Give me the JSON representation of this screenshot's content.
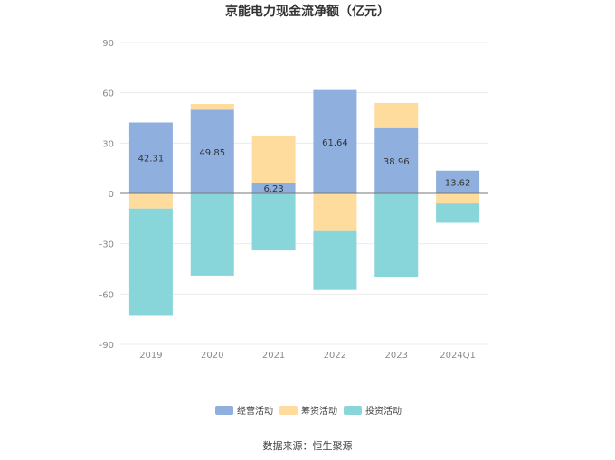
{
  "chart_data": {
    "type": "bar",
    "stacked": true,
    "title": "京能电力现金流净额（亿元）",
    "categories": [
      "2019",
      "2020",
      "2021",
      "2022",
      "2023",
      "2024Q1"
    ],
    "ylim": [
      -90,
      90
    ],
    "yticks": [
      90,
      60,
      30,
      0,
      -30,
      -60,
      -90
    ],
    "grid": true,
    "legend_position": "bottom",
    "series": [
      {
        "name": "经营活动",
        "color": "#8fb0de",
        "values": [
          42.31,
          49.85,
          6.23,
          61.64,
          38.96,
          13.62
        ],
        "labels": [
          "42.31",
          "49.85",
          "6.23",
          "61.64",
          "38.96",
          "13.62"
        ]
      },
      {
        "name": "筹资活动",
        "color": "#fddc9e",
        "values": [
          -9.0,
          3.5,
          28.0,
          -22.5,
          15.0,
          -6.0
        ]
      },
      {
        "name": "投资活动",
        "color": "#88d6da",
        "values": [
          -64.0,
          -49.0,
          -34.0,
          -35.0,
          -50.0,
          -11.5
        ]
      }
    ],
    "source": "数据来源：恒生聚源"
  }
}
